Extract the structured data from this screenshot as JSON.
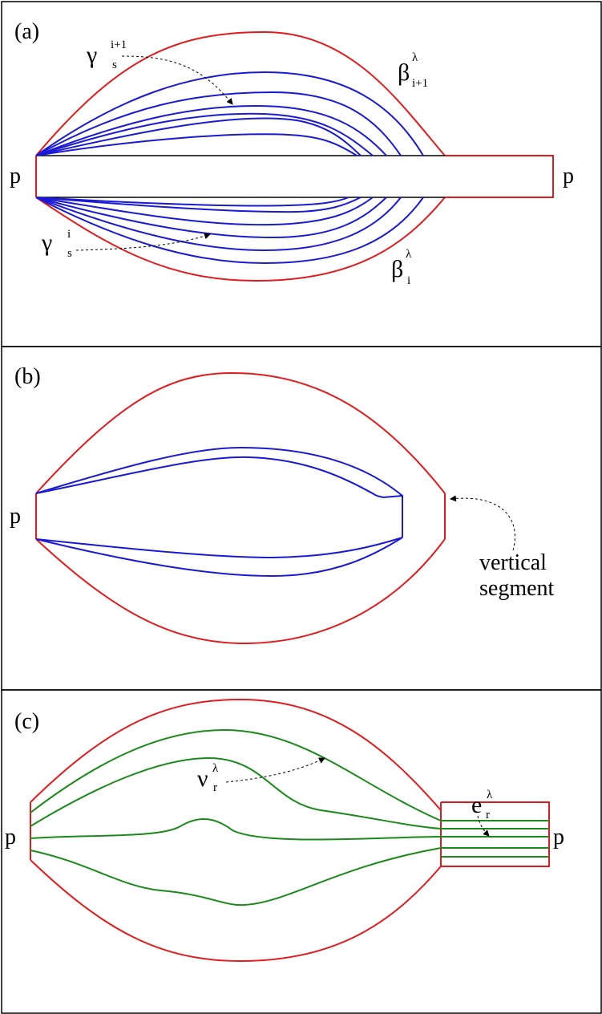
{
  "panels": {
    "a": {
      "label": "(a)",
      "p_left": "p",
      "p_right": "p",
      "gamma_top": {
        "sym": "γ",
        "sup": "i+1",
        "sub": "s"
      },
      "gamma_bottom": {
        "sym": "γ",
        "sup": "i",
        "sub": "s"
      },
      "beta_top": {
        "sym": "β",
        "sup": "λ",
        "sub": "i+1"
      },
      "beta_bottom": {
        "sym": "β",
        "sup": "λ",
        "sub": "i"
      }
    },
    "b": {
      "label": "(b)",
      "p_left": "p",
      "annotation_line1": "vertical",
      "annotation_line2": "segment"
    },
    "c": {
      "label": "(c)",
      "p_left": "p",
      "p_right": "p",
      "nu": {
        "sym": "ν",
        "sup": "λ",
        "sub": "r"
      },
      "e": {
        "sym": "e",
        "sup": "λ",
        "sub": "r"
      }
    }
  },
  "colors": {
    "boundary": "#e41a1c",
    "blue_curves": "#1a1ad6",
    "green_curves": "#1a8a1a"
  }
}
